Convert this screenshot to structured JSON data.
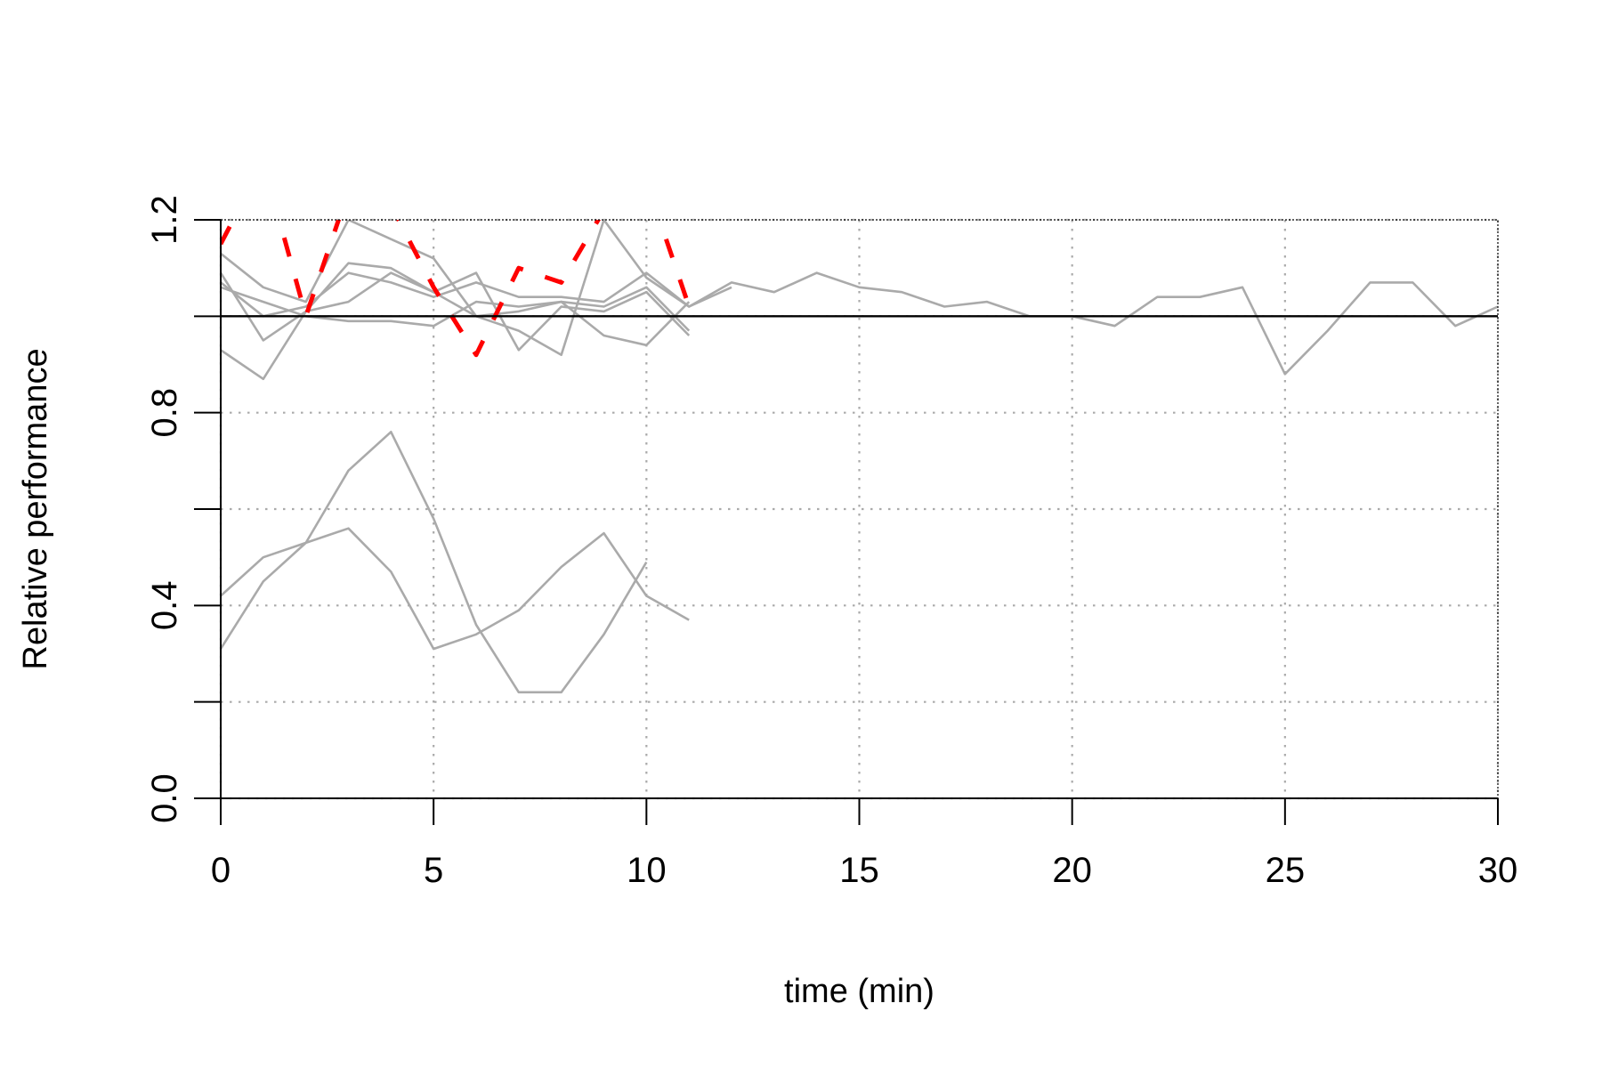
{
  "chart_data": {
    "type": "line",
    "title": "",
    "xlabel": "time (min)",
    "ylabel": "Relative performance",
    "xlim": [
      0,
      30
    ],
    "ylim": [
      0,
      1.2
    ],
    "x_ticks": [
      0,
      5,
      10,
      15,
      20,
      25,
      30
    ],
    "x_tick_labels": [
      "0",
      "5",
      "10",
      "15",
      "20",
      "25",
      "30"
    ],
    "y_ticks": [
      0.0,
      0.2,
      0.4,
      0.6,
      0.8,
      1.0,
      1.2
    ],
    "y_tick_labels": [
      "0.0",
      "",
      "0.4",
      "",
      "0.8",
      "",
      "1.2"
    ],
    "grid": true,
    "reference_line": 1.0,
    "colors": {
      "series": "#aaaaaa",
      "highlight": "#ff0000",
      "grid": "#aaaaaa",
      "reference": "#000000"
    },
    "series": [
      {
        "style": "solid",
        "x": [
          0,
          1,
          2,
          3,
          4,
          5,
          6,
          7,
          8,
          9,
          10,
          11,
          12,
          13,
          14,
          15,
          16,
          17,
          18,
          19,
          20,
          21,
          22,
          23,
          24,
          25,
          26,
          27,
          28,
          29,
          30
        ],
        "y": [
          1.07,
          1.0,
          1.02,
          1.09,
          1.07,
          1.04,
          1.07,
          1.04,
          1.04,
          1.03,
          1.09,
          1.02,
          1.07,
          1.05,
          1.09,
          1.06,
          1.05,
          1.02,
          1.03,
          1.0,
          1.0,
          0.98,
          1.04,
          1.04,
          1.06,
          0.88,
          0.97,
          1.07,
          1.07,
          0.98,
          1.02
        ]
      },
      {
        "style": "solid",
        "x": [
          0,
          1,
          2,
          3,
          4,
          5,
          6,
          7,
          8,
          9,
          10,
          11,
          12
        ],
        "y": [
          1.13,
          1.06,
          1.03,
          1.2,
          1.16,
          1.12,
          1.0,
          0.97,
          0.92,
          1.2,
          1.08,
          1.02,
          1.06
        ]
      },
      {
        "style": "solid",
        "x": [
          0,
          1,
          2,
          3,
          4,
          5,
          6,
          7,
          8,
          9,
          10,
          11
        ],
        "y": [
          1.09,
          0.95,
          1.01,
          1.11,
          1.1,
          1.05,
          1.09,
          0.93,
          1.02,
          1.01,
          1.05,
          0.96
        ]
      },
      {
        "style": "solid",
        "x": [
          0,
          1,
          2,
          3,
          4,
          5,
          6,
          7,
          8,
          9,
          10,
          11
        ],
        "y": [
          0.93,
          0.87,
          1.01,
          1.03,
          1.09,
          1.05,
          1.0,
          1.01,
          1.03,
          0.96,
          0.94,
          1.03
        ]
      },
      {
        "style": "solid",
        "x": [
          0,
          1,
          2,
          3,
          4,
          5,
          6,
          7,
          8,
          9,
          10,
          11
        ],
        "y": [
          1.06,
          1.03,
          1.0,
          0.99,
          0.99,
          0.98,
          1.03,
          1.02,
          1.03,
          1.02,
          1.06,
          0.97
        ]
      },
      {
        "style": "solid",
        "x": [
          0,
          1,
          2,
          3,
          4,
          5,
          6,
          7,
          8,
          9,
          10,
          11
        ],
        "y": [
          0.42,
          0.5,
          0.53,
          0.56,
          0.47,
          0.31,
          0.34,
          0.39,
          0.48,
          0.55,
          0.42,
          0.37
        ]
      },
      {
        "style": "solid",
        "x": [
          0,
          1,
          2,
          3,
          4,
          5,
          6,
          7,
          8,
          9,
          10
        ],
        "y": [
          0.31,
          0.45,
          0.53,
          0.68,
          0.76,
          0.58,
          0.36,
          0.22,
          0.22,
          0.34,
          0.49
        ]
      },
      {
        "style": "dashed",
        "x": [
          0,
          1,
          2,
          3,
          4,
          5,
          6,
          7,
          8,
          9,
          10,
          11
        ],
        "y": [
          1.15,
          1.32,
          1.0,
          1.26,
          1.23,
          1.06,
          0.92,
          1.1,
          1.07,
          1.22,
          1.28,
          1.02
        ]
      }
    ]
  }
}
